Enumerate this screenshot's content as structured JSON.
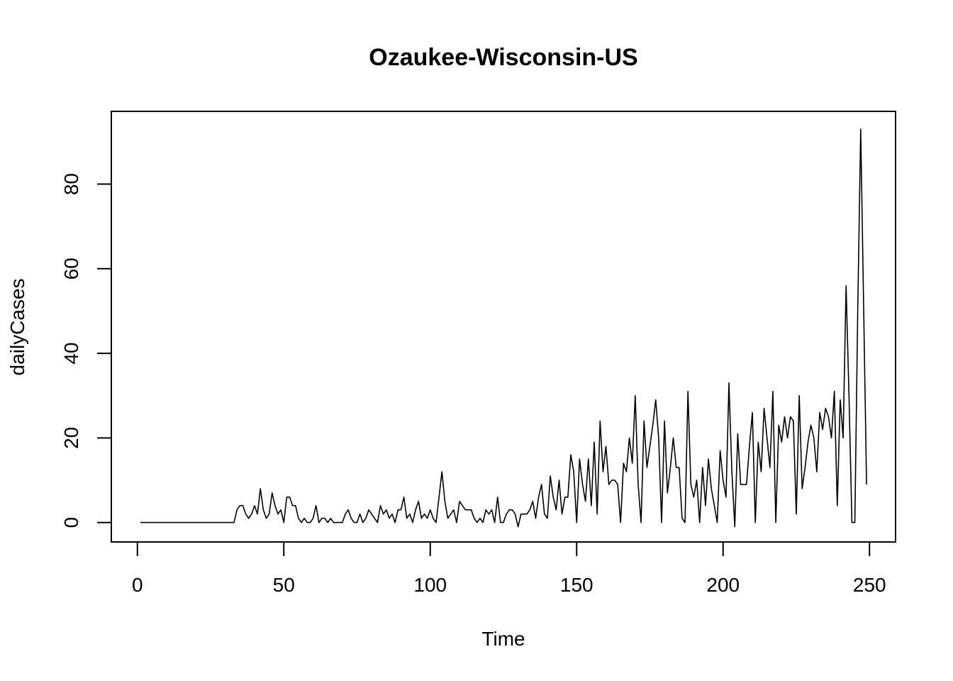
{
  "chart_data": {
    "type": "line",
    "title": "Ozaukee-Wisconsin-US",
    "xlabel": "Time",
    "ylabel": "dailyCases",
    "xlim": [
      -8.9,
      258.9
    ],
    "ylim": [
      -4.6,
      97.2
    ],
    "xticks": [
      0,
      50,
      100,
      150,
      200,
      250
    ],
    "yticks": [
      0,
      20,
      40,
      60,
      80
    ],
    "grid": false,
    "line_color": "#000000",
    "series": [
      {
        "x_start": 1,
        "values": [
          0,
          0,
          0,
          0,
          0,
          0,
          0,
          0,
          0,
          0,
          0,
          0,
          0,
          0,
          0,
          0,
          0,
          0,
          0,
          0,
          0,
          0,
          0,
          0,
          0,
          0,
          0,
          0,
          0,
          0,
          0,
          0,
          0,
          3,
          4,
          4,
          2,
          1,
          2,
          4,
          2,
          8,
          3,
          1,
          2,
          7,
          4,
          2,
          3,
          0,
          6,
          6,
          4,
          4,
          1,
          0,
          1,
          0,
          0,
          1,
          4,
          0,
          1,
          1,
          0,
          1,
          0,
          0,
          0,
          0,
          2,
          3,
          1,
          0,
          0,
          2,
          0,
          1,
          3,
          2,
          1,
          0,
          4,
          2,
          3,
          1,
          2,
          0,
          3,
          3,
          6,
          1,
          2,
          0,
          3,
          5,
          1,
          2,
          1,
          3,
          1,
          0,
          6,
          12,
          5,
          1,
          2,
          3,
          0,
          5,
          4,
          3,
          3,
          3,
          1,
          0,
          1,
          0,
          3,
          2,
          3,
          0,
          6,
          0,
          0,
          2,
          3,
          3,
          2,
          -1,
          2,
          2,
          2,
          3,
          5,
          1,
          6,
          9,
          2,
          1,
          11,
          6,
          3,
          10,
          2,
          6,
          6,
          16,
          12,
          0,
          15,
          9,
          5,
          15,
          4,
          19,
          2,
          24,
          12,
          18,
          9,
          10,
          10,
          9,
          0,
          14,
          12,
          20,
          14,
          30,
          9,
          0,
          24,
          13,
          18,
          23,
          29,
          20,
          0,
          24,
          7,
          13,
          20,
          13,
          13,
          1,
          0,
          31,
          9,
          6,
          10,
          0,
          13,
          4,
          15,
          8,
          4,
          0,
          17,
          10,
          6,
          33,
          12,
          -1,
          21,
          9,
          9,
          9,
          18,
          26,
          0,
          19,
          12,
          27,
          20,
          13,
          31,
          0,
          23,
          19,
          25,
          20,
          25,
          24,
          2,
          30,
          8,
          13,
          19,
          23,
          20,
          12,
          26,
          22,
          27,
          25,
          20,
          31,
          4,
          29,
          20,
          56,
          30,
          0,
          0,
          51,
          93,
          51,
          9
        ]
      }
    ]
  }
}
